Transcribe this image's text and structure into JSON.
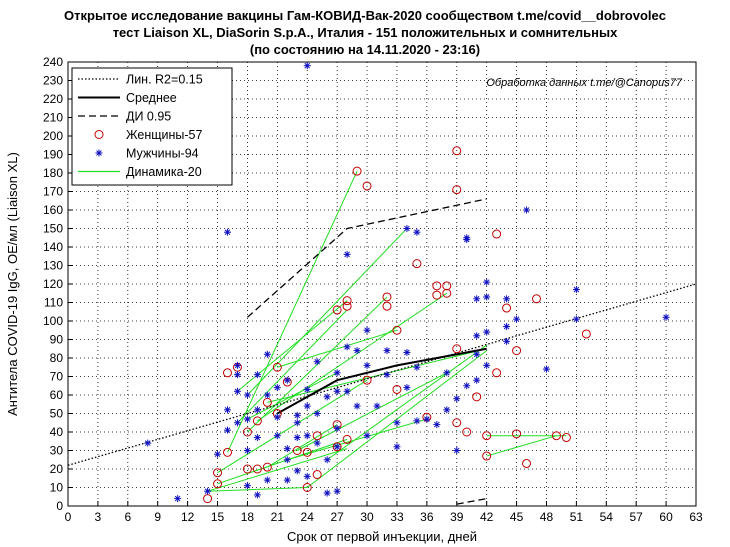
{
  "title": {
    "line1": "Открытое исследование вакцины Гам-КОВИД-Вак-2020 сообществом t.me/covid__dobrovolec",
    "line2": "тест Liaison XL, DiaSorin S.p.A., Италия - 151 положительных и сомнительных",
    "line3": "(по состоянию на 14.11.2020 - 23:16)"
  },
  "chart_data": {
    "type": "scatter",
    "xlabel": "Срок от первой инъекции, дней",
    "ylabel": "Антитела COVID-19 IgG, ОЕ/мл (Liaison XL)",
    "xlim": [
      0,
      63
    ],
    "ylim": [
      0,
      240
    ],
    "xticks": [
      0,
      3,
      6,
      9,
      12,
      15,
      18,
      21,
      24,
      27,
      30,
      33,
      36,
      39,
      42,
      45,
      48,
      51,
      54,
      57,
      60,
      63
    ],
    "yticks": [
      0,
      10,
      20,
      30,
      40,
      50,
      60,
      70,
      80,
      90,
      100,
      110,
      120,
      130,
      140,
      150,
      160,
      170,
      180,
      190,
      200,
      210,
      220,
      230,
      240
    ],
    "grid": true,
    "annotation": "Обработка данных t.me/@Canopus77",
    "legend": {
      "position": "top-left",
      "entries": [
        "Лин. R2=0.15",
        "Среднее",
        "ДИ 0.95",
        "Женщины-57",
        "Мужчины-94",
        "Динамика-20"
      ]
    },
    "colors": {
      "women": "#c00000",
      "men": "#1010c0",
      "dynamics": "#22dd22",
      "lines": "#000000"
    },
    "series": [
      {
        "name": "Лин. R2=0.15",
        "style": "dotted",
        "x": [
          0,
          63
        ],
        "y": [
          22,
          120
        ]
      },
      {
        "name": "Среднее",
        "style": "solid",
        "x": [
          21,
          27,
          33,
          36,
          42
        ],
        "y": [
          50,
          68,
          76,
          79,
          85
        ]
      },
      {
        "name": "ДИ 0.95 upper",
        "style": "dashed",
        "x": [
          18,
          28,
          42
        ],
        "y": [
          102,
          150,
          166
        ]
      },
      {
        "name": "ДИ 0.95 lower",
        "style": "dashed",
        "x": [
          39,
          42
        ],
        "y": [
          1,
          4
        ]
      },
      {
        "name": "Женщины-57",
        "marker": "circle",
        "points": [
          [
            14,
            4
          ],
          [
            15,
            12
          ],
          [
            15,
            18
          ],
          [
            16,
            72
          ],
          [
            16,
            29
          ],
          [
            17,
            75
          ],
          [
            18,
            40
          ],
          [
            18,
            20
          ],
          [
            19,
            20
          ],
          [
            19,
            46
          ],
          [
            20,
            21
          ],
          [
            20,
            56
          ],
          [
            21,
            50
          ],
          [
            21,
            75
          ],
          [
            22,
            67
          ],
          [
            23,
            30
          ],
          [
            24,
            29
          ],
          [
            24,
            10
          ],
          [
            25,
            17
          ],
          [
            25,
            38
          ],
          [
            27,
            32
          ],
          [
            27,
            44
          ],
          [
            27,
            106
          ],
          [
            28,
            108
          ],
          [
            28,
            111
          ],
          [
            28,
            36
          ],
          [
            29,
            181
          ],
          [
            30,
            173
          ],
          [
            30,
            68
          ],
          [
            32,
            108
          ],
          [
            32,
            113
          ],
          [
            33,
            95
          ],
          [
            33,
            63
          ],
          [
            35,
            131
          ],
          [
            36,
            48
          ],
          [
            37,
            114
          ],
          [
            37,
            119
          ],
          [
            38,
            119
          ],
          [
            38,
            115
          ],
          [
            39,
            192
          ],
          [
            39,
            171
          ],
          [
            39,
            85
          ],
          [
            39,
            45
          ],
          [
            40,
            40
          ],
          [
            41,
            59
          ],
          [
            42,
            38
          ],
          [
            42,
            27
          ],
          [
            43,
            147
          ],
          [
            43,
            72
          ],
          [
            44,
            107
          ],
          [
            45,
            84
          ],
          [
            45,
            39
          ],
          [
            46,
            23
          ],
          [
            47,
            112
          ],
          [
            49,
            38
          ],
          [
            50,
            37
          ],
          [
            52,
            93
          ]
        ]
      },
      {
        "name": "Мужчины-94",
        "marker": "asterisk",
        "points": [
          [
            8,
            34
          ],
          [
            11,
            4
          ],
          [
            14,
            8
          ],
          [
            15,
            28
          ],
          [
            16,
            148
          ],
          [
            16,
            52
          ],
          [
            16,
            41
          ],
          [
            17,
            71
          ],
          [
            17,
            76
          ],
          [
            17,
            62
          ],
          [
            17,
            45
          ],
          [
            18,
            30
          ],
          [
            18,
            47
          ],
          [
            18,
            60
          ],
          [
            18,
            11
          ],
          [
            19,
            6
          ],
          [
            19,
            37
          ],
          [
            19,
            52
          ],
          [
            19,
            71
          ],
          [
            20,
            82
          ],
          [
            20,
            60
          ],
          [
            20,
            14
          ],
          [
            21,
            38
          ],
          [
            21,
            48
          ],
          [
            21,
            64
          ],
          [
            22,
            31
          ],
          [
            22,
            14
          ],
          [
            22,
            25
          ],
          [
            22,
            68
          ],
          [
            23,
            19
          ],
          [
            23,
            37
          ],
          [
            23,
            45
          ],
          [
            23,
            49
          ],
          [
            24,
            238
          ],
          [
            24,
            16
          ],
          [
            24,
            38
          ],
          [
            24,
            54
          ],
          [
            24,
            63
          ],
          [
            25,
            34
          ],
          [
            25,
            78
          ],
          [
            25,
            50
          ],
          [
            26,
            7
          ],
          [
            26,
            25
          ],
          [
            26,
            59
          ],
          [
            27,
            8
          ],
          [
            27,
            32
          ],
          [
            27,
            42
          ],
          [
            27,
            62
          ],
          [
            27,
            72
          ],
          [
            28,
            136
          ],
          [
            28,
            62
          ],
          [
            28,
            86
          ],
          [
            29,
            84
          ],
          [
            29,
            54
          ],
          [
            30,
            95
          ],
          [
            30,
            76
          ],
          [
            30,
            38
          ],
          [
            31,
            54
          ],
          [
            32,
            84
          ],
          [
            32,
            71
          ],
          [
            33,
            32
          ],
          [
            33,
            45
          ],
          [
            34,
            150
          ],
          [
            34,
            64
          ],
          [
            34,
            83
          ],
          [
            35,
            148
          ],
          [
            35,
            75
          ],
          [
            35,
            46
          ],
          [
            36,
            47
          ],
          [
            37,
            44
          ],
          [
            38,
            72
          ],
          [
            38,
            52
          ],
          [
            39,
            58
          ],
          [
            39,
            30
          ],
          [
            40,
            144
          ],
          [
            40,
            145
          ],
          [
            40,
            65
          ],
          [
            41,
            112
          ],
          [
            41,
            92
          ],
          [
            41,
            82
          ],
          [
            41,
            68
          ],
          [
            42,
            121
          ],
          [
            42,
            113
          ],
          [
            42,
            94
          ],
          [
            42,
            76
          ],
          [
            44,
            112
          ],
          [
            44,
            97
          ],
          [
            44,
            89
          ],
          [
            45,
            101
          ],
          [
            46,
            160
          ],
          [
            48,
            74
          ],
          [
            51,
            117
          ],
          [
            51,
            101
          ],
          [
            60,
            102
          ]
        ]
      },
      {
        "name": "Динамика-20",
        "marker": "line",
        "segments": [
          [
            [
              14,
              8
            ],
            [
              28,
              31
            ]
          ],
          [
            [
              15,
              12
            ],
            [
              28,
              36
            ]
          ],
          [
            [
              15,
              18
            ],
            [
              30,
              68
            ]
          ],
          [
            [
              16,
              29
            ],
            [
              29,
              181
            ]
          ],
          [
            [
              17,
              45
            ],
            [
              28,
              106
            ]
          ],
          [
            [
              17,
              62
            ],
            [
              28,
              111
            ]
          ],
          [
            [
              18,
              40
            ],
            [
              32,
              113
            ]
          ],
          [
            [
              18,
              60
            ],
            [
              34,
              150
            ]
          ],
          [
            [
              18,
              47
            ],
            [
              27,
              72
            ]
          ],
          [
            [
              19,
              46
            ],
            [
              38,
              115
            ]
          ],
          [
            [
              20,
              56
            ],
            [
              42,
              85
            ]
          ],
          [
            [
              20,
              21
            ],
            [
              27,
              44
            ]
          ],
          [
            [
              21,
              75
            ],
            [
              33,
              95
            ]
          ],
          [
            [
              22,
              25
            ],
            [
              36,
              47
            ]
          ],
          [
            [
              23,
              30
            ],
            [
              38,
              72
            ]
          ],
          [
            [
              24,
              10
            ],
            [
              42,
              84
            ]
          ],
          [
            [
              26,
              25
            ],
            [
              42,
              87
            ]
          ],
          [
            [
              14,
              8
            ],
            [
              24,
              10
            ]
          ],
          [
            [
              42,
              38
            ],
            [
              50,
              38
            ]
          ],
          [
            [
              42,
              27
            ],
            [
              49,
              38
            ]
          ]
        ]
      }
    ]
  }
}
